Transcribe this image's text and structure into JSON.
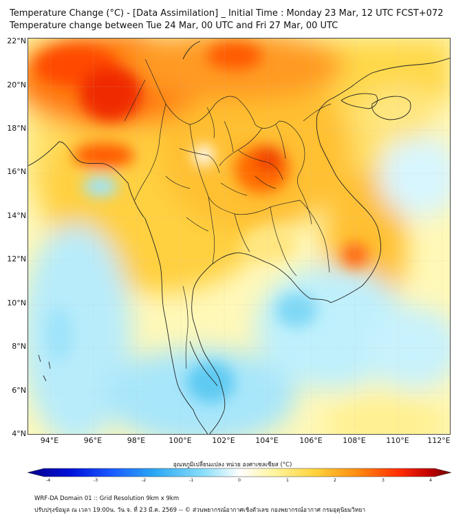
{
  "title_line1": "Temperature Change (°C) - [Data Assimilation] _ Initial Time : Monday 23 Mar, 12 UTC FCST+072",
  "title_line2": "Temperature change between Tue 24 Mar, 00 UTC and Fri 27 Mar, 00 UTC",
  "lat_labels": [
    "22°N",
    "20°N",
    "18°N",
    "16°N",
    "14°N",
    "12°N",
    "10°N",
    "8°N",
    "6°N",
    "4°N"
  ],
  "lon_labels": [
    "94°E",
    "96°E",
    "98°E",
    "100°E",
    "102°E",
    "104°E",
    "106°E",
    "108°E",
    "110°E",
    "112°E"
  ],
  "colorbar": {
    "title": "อุณหภูมิเปลี่ยนแปลง หน่วย องศาเซลเซียส (°C)",
    "ticks": [
      "-4",
      "-3",
      "-2",
      "-1",
      "0",
      "1",
      "2",
      "3",
      "4"
    ],
    "range": [
      -4,
      4
    ],
    "colors": [
      "#08008a",
      "#0010d8",
      "#1a5cff",
      "#2aa8f5",
      "#8fe0fa",
      "#ffffff",
      "#fff6a0",
      "#ffd23a",
      "#ff8a10",
      "#ff2a00",
      "#c00000",
      "#6a0000"
    ]
  },
  "footer_line1": "WRF-DA Domain 01 :: Grid Resolution 9km x 9km",
  "footer_line2": "ปรับปรุงข้อมูล ณ เวลา 19:00น. วัน จ. ที่ 23 มี.ค. 2569 -- © ส่วนพยากรณ์อากาศเชิงตัวเลข กองพยากรณ์อากาศ กรมอุตุนิยมวิทยา",
  "map": {
    "lat_range": [
      4,
      22.2
    ],
    "lon_range": [
      93,
      112.4
    ],
    "field_regions": [
      {
        "type": "warming",
        "lon": 95.5,
        "lat": 21.0,
        "magnitude": 3.2
      },
      {
        "type": "warming",
        "lon": 100.5,
        "lat": 21.0,
        "magnitude": 2.5
      },
      {
        "type": "warming",
        "lon": 97.0,
        "lat": 16.8,
        "magnitude": 2.6
      },
      {
        "type": "warming",
        "lon": 103.8,
        "lat": 17.4,
        "magnitude": 2.8
      },
      {
        "type": "warming",
        "lon": 108.0,
        "lat": 12.2,
        "magnitude": 2.0
      },
      {
        "type": "cooling",
        "lon": 105.7,
        "lat": 9.6,
        "magnitude": -1.0
      },
      {
        "type": "cooling",
        "lon": 101.3,
        "lat": 5.5,
        "magnitude": -1.2
      },
      {
        "type": "cooling",
        "lon": 96.0,
        "lat": 9.0,
        "magnitude": -0.6
      },
      {
        "type": "cooling",
        "lon": 111.0,
        "lat": 16.5,
        "magnitude": -0.6
      }
    ]
  }
}
